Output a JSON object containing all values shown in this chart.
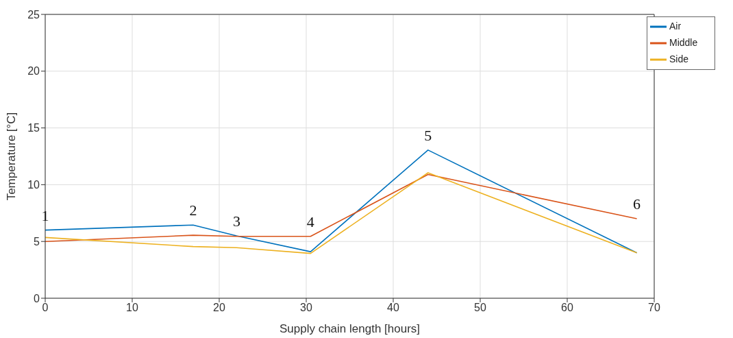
{
  "chart_data": {
    "type": "line",
    "xlabel": "Supply chain length [hours]",
    "ylabel": "Temperature [°C]",
    "x": [
      0,
      17,
      22,
      30.5,
      44,
      68
    ],
    "series": [
      {
        "name": "Air",
        "color": "#0072bd",
        "values": [
          6.0,
          6.45,
          5.5,
          4.1,
          13.05,
          4.0
        ]
      },
      {
        "name": "Middle",
        "color": "#d95319",
        "values": [
          5.0,
          5.55,
          5.45,
          5.45,
          10.9,
          7.0
        ]
      },
      {
        "name": "Side",
        "color": "#edb120",
        "values": [
          5.35,
          4.55,
          4.45,
          3.95,
          11.05,
          4.0
        ]
      }
    ],
    "xlim": [
      0,
      70
    ],
    "xticks": [
      0,
      10,
      20,
      30,
      40,
      50,
      60,
      70
    ],
    "ylim": [
      0,
      25
    ],
    "yticks": [
      0,
      5,
      10,
      15,
      20,
      25
    ],
    "grid": true,
    "legend": "top right",
    "marker": "none",
    "line_style": "solid",
    "annotations": [
      {
        "text": "1",
        "x": 0,
        "y": 6.0
      },
      {
        "text": "2",
        "x": 17,
        "y": 6.45
      },
      {
        "text": "3",
        "x": 22,
        "y": 5.5
      },
      {
        "text": "4",
        "x": 30.5,
        "y": 5.45
      },
      {
        "text": "5",
        "x": 44,
        "y": 13.05
      },
      {
        "text": "6",
        "x": 68,
        "y": 7.0
      }
    ]
  }
}
